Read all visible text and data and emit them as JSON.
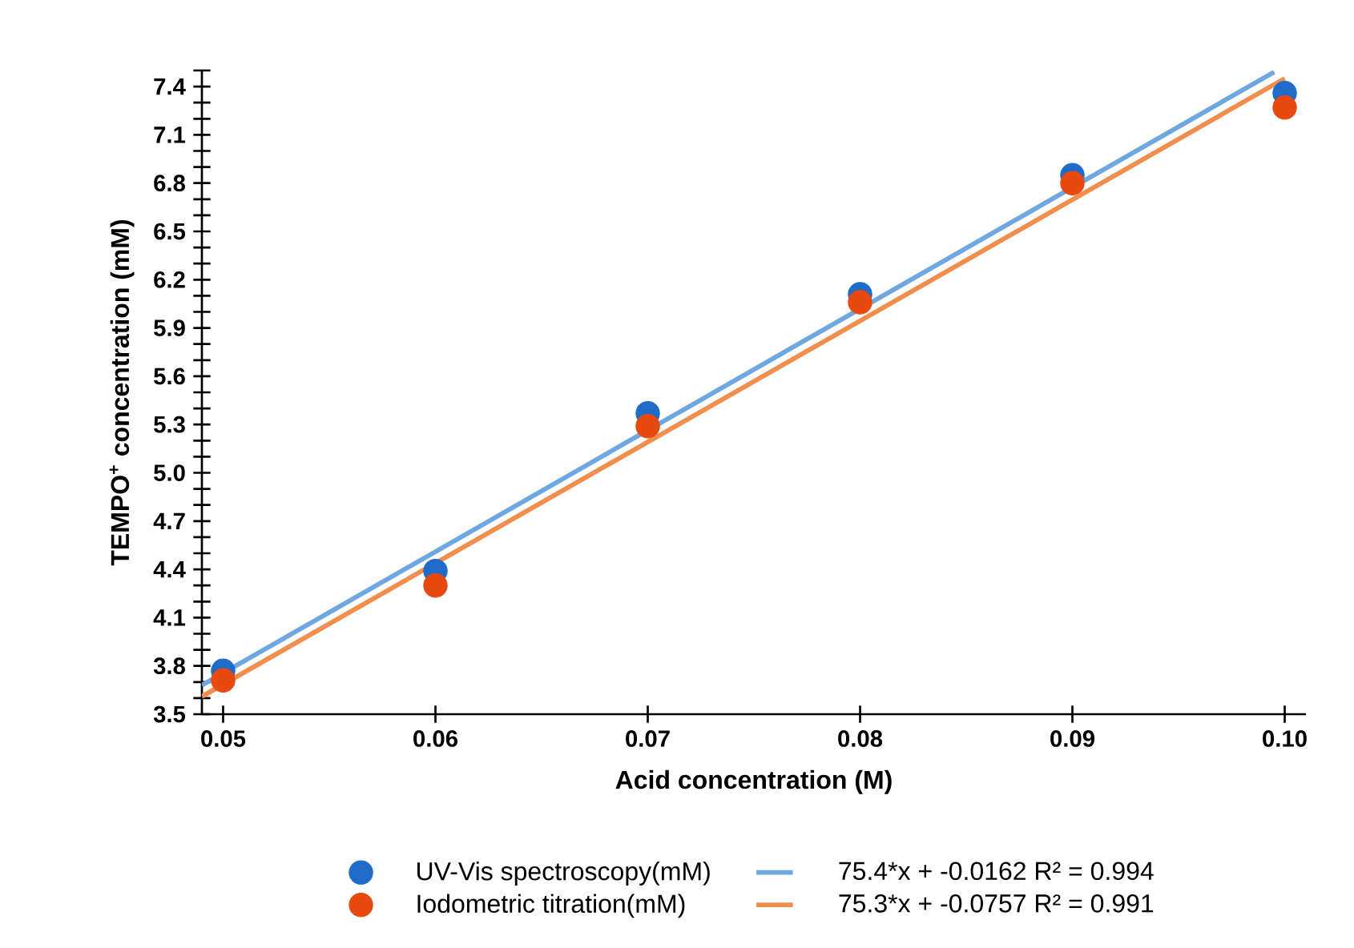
{
  "chart_data": {
    "type": "scatter",
    "xlabel": "Acid concentration (M)",
    "ylabel": "TEMPO$^{+}$ concentration (mM)",
    "x": [
      0.05,
      0.06,
      0.07,
      0.08,
      0.09,
      0.1
    ],
    "series": [
      {
        "name": "UV-Vis spectroscopy(mM)",
        "color": "#1f6cc8",
        "marker": "circle",
        "values": [
          3.77,
          4.39,
          5.37,
          6.11,
          6.85,
          7.36
        ]
      },
      {
        "name": "75.4*x + -0.0162 R² = 0.994",
        "type": "line",
        "color": "#6fa8e0",
        "x": [
          0.049,
          0.0995
        ],
        "values": [
          3.68,
          7.49
        ]
      },
      {
        "name": "Iodometric titration(mM)",
        "color": "#e8490f",
        "marker": "circle",
        "values": [
          3.71,
          4.3,
          5.29,
          6.06,
          6.8,
          7.27
        ]
      },
      {
        "name": "75.3*x + -0.0757 R² = 0.991",
        "type": "line",
        "color": "#f28e4c",
        "x": [
          0.049,
          0.1
        ],
        "values": [
          3.61,
          7.45
        ]
      }
    ],
    "xlim": [
      0.049,
      0.101
    ],
    "xticks": [
      0.05,
      0.06,
      0.07,
      0.08,
      0.09,
      {
        "value": 0.1,
        "label": "0.10"
      }
    ],
    "ylim": [
      3.5,
      7.5
    ],
    "yticks": [
      3.5,
      {
        "value": 3.6,
        "label": null
      },
      {
        "value": 3.7,
        "label": null
      },
      3.8,
      {
        "value": 3.9,
        "label": null
      },
      {
        "value": 4.0,
        "label": null
      },
      4.1,
      {
        "value": 4.2,
        "label": null
      },
      {
        "value": 4.3,
        "label": null
      },
      4.4,
      {
        "value": 4.5,
        "label": null
      },
      {
        "value": 4.6,
        "label": null
      },
      4.7,
      {
        "value": 4.8,
        "label": null
      },
      {
        "value": 4.9,
        "label": null
      },
      {
        "value": 5.0,
        "label": "5.0"
      },
      {
        "value": 5.1,
        "label": null
      },
      {
        "value": 5.2,
        "label": null
      },
      5.3,
      {
        "value": 5.4,
        "label": null
      },
      {
        "value": 5.5,
        "label": null
      },
      5.6,
      {
        "value": 5.7,
        "label": null
      },
      {
        "value": 5.8,
        "label": null
      },
      5.9,
      {
        "value": 6.0,
        "label": null
      },
      {
        "value": 6.1,
        "label": null
      },
      6.2,
      {
        "value": 6.3,
        "label": null
      },
      {
        "value": 6.4,
        "label": null
      },
      6.5,
      {
        "value": 6.6,
        "label": null
      },
      {
        "value": 6.7,
        "label": null
      },
      6.8,
      {
        "value": 6.9,
        "label": null
      },
      {
        "value": 7.0,
        "label": null
      },
      7.1,
      {
        "value": 7.2,
        "label": null
      },
      {
        "value": 7.3,
        "label": null
      },
      7.4,
      {
        "value": 7.5,
        "label": null
      }
    ],
    "grid": false,
    "legend": "bottom"
  }
}
